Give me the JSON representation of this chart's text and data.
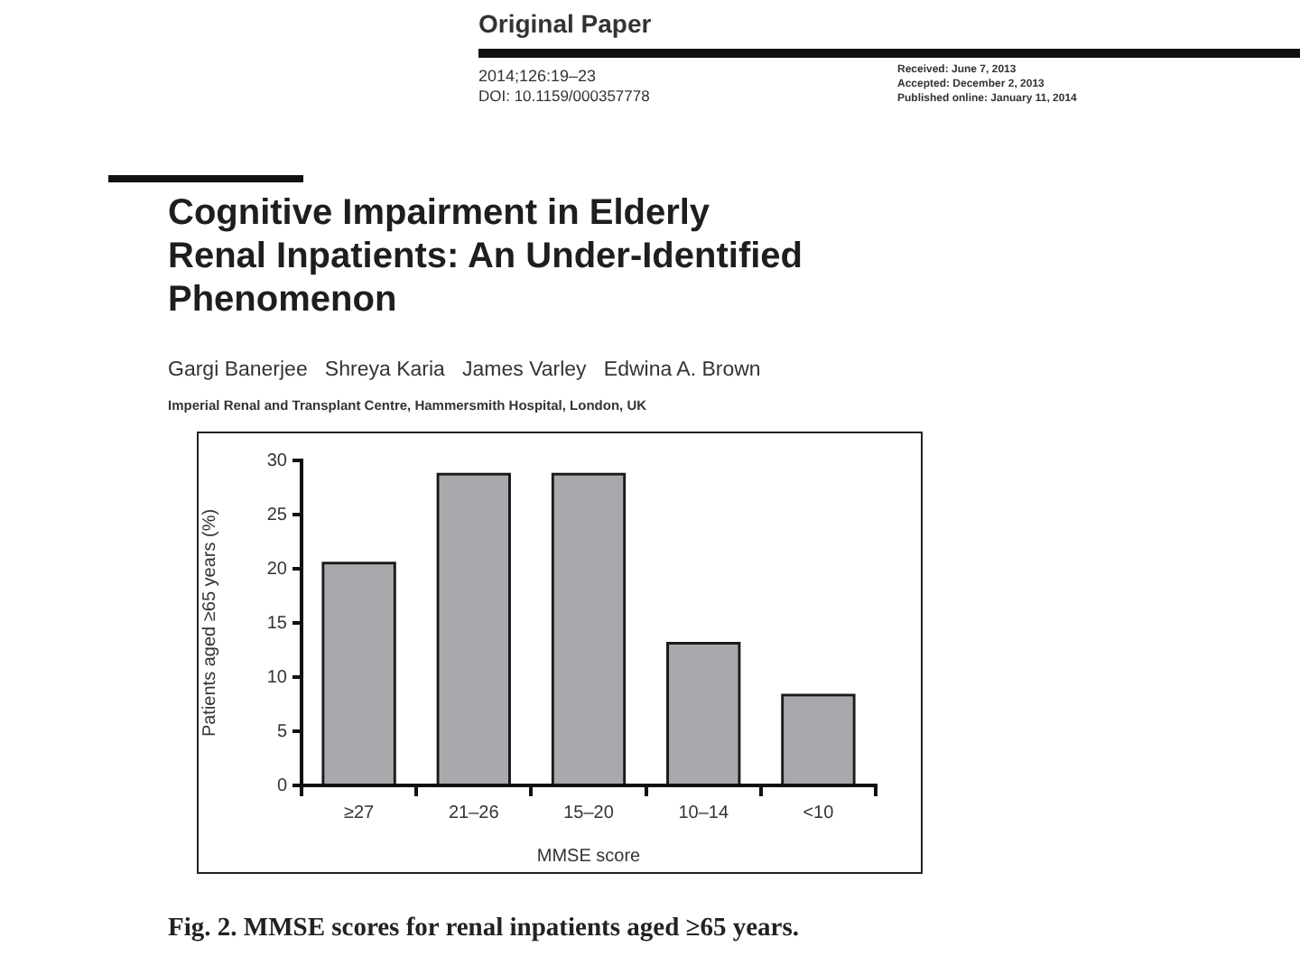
{
  "chart_data": {
    "type": "bar",
    "title": "Cognitive Impairment in Elderly Renal Inpatients: An Under-Identified Phenomenon",
    "subtitle": "Gargi Banerjee   Shreya Karia   James Varley   Edwina A. Brown",
    "xlabel": "MMSE score",
    "ylabel": "Patients aged ≥65 years (%)",
    "categories": [
      "≥27",
      "21–26",
      "15–20",
      "10–14",
      "<10"
    ],
    "values": [
      20.4,
      28.6,
      28.6,
      13.0,
      8.2
    ],
    "color": "#a7a9ac",
    "ylim": [
      0,
      30
    ],
    "yticks": [
      0,
      5,
      10,
      15,
      20,
      25,
      30
    ],
    "annotations": [
      "Original Paper",
      "2014;126:19–23",
      "DOI: 10.1159/000357778",
      "Received: June 7, 2013",
      "Accepted: December 2, 2013",
      "Published online: January 11, 2014",
      "Imperial Renal and Transplant Centre, Hammersmith Hospital, London, UK",
      "Fig. 2. MMSE scores for renal inpatients aged ≥65 years."
    ]
  }
}
